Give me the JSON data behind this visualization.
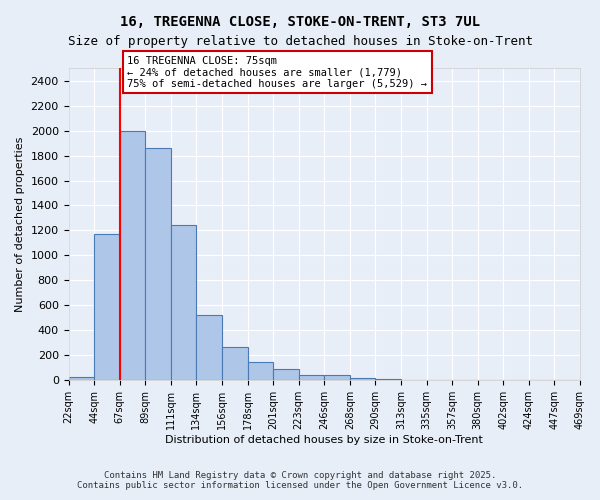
{
  "title1": "16, TREGENNA CLOSE, STOKE-ON-TRENT, ST3 7UL",
  "title2": "Size of property relative to detached houses in Stoke-on-Trent",
  "xlabel": "Distribution of detached houses by size in Stoke-on-Trent",
  "ylabel": "Number of detached properties",
  "bar_values": [
    30,
    1170,
    2000,
    1860,
    1240,
    520,
    270,
    150,
    90,
    45,
    40,
    20,
    10,
    5,
    3,
    2,
    2,
    2,
    2,
    2
  ],
  "bin_labels": [
    "22sqm",
    "44sqm",
    "67sqm",
    "89sqm",
    "111sqm",
    "134sqm",
    "156sqm",
    "178sqm",
    "201sqm",
    "223sqm",
    "246sqm",
    "268sqm",
    "290sqm",
    "313sqm",
    "335sqm",
    "357sqm",
    "380sqm",
    "402sqm",
    "424sqm",
    "447sqm",
    "469sqm"
  ],
  "bar_color": "#aec6e8",
  "bar_edge_color": "#4a7ab5",
  "red_line_x": 2,
  "annotation_text": "16 TREGENNA CLOSE: 75sqm\n← 24% of detached houses are smaller (1,779)\n75% of semi-detached houses are larger (5,529) →",
  "annotation_box_color": "#ffffff",
  "annotation_box_edge": "#cc0000",
  "ylim": [
    0,
    2500
  ],
  "yticks": [
    0,
    200,
    400,
    600,
    800,
    1000,
    1200,
    1400,
    1600,
    1800,
    2000,
    2200,
    2400
  ],
  "bg_color": "#e8eef8",
  "grid_color": "#ffffff",
  "footer1": "Contains HM Land Registry data © Crown copyright and database right 2025.",
  "footer2": "Contains public sector information licensed under the Open Government Licence v3.0."
}
